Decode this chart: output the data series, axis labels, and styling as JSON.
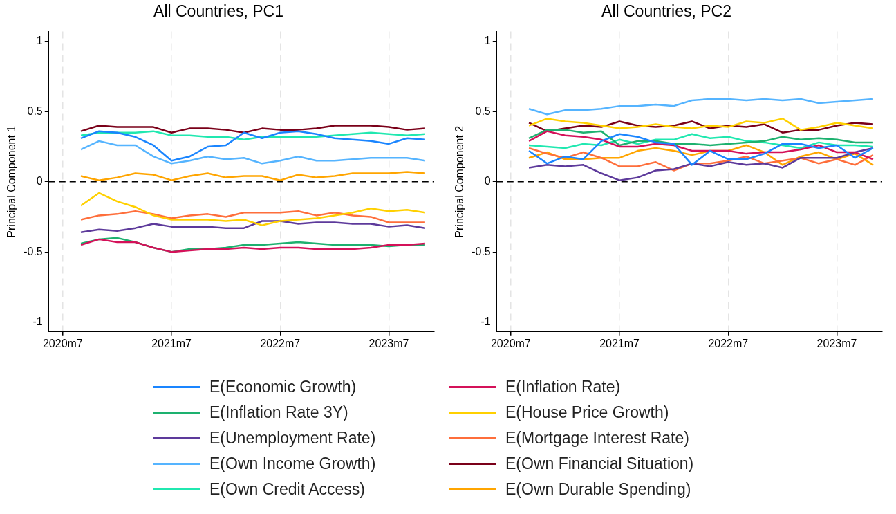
{
  "chart_data": [
    {
      "type": "line",
      "title": "All Countries, PC1",
      "ylabel": "Principal Component 1",
      "x": [
        "2020-09",
        "2020-11",
        "2021-01",
        "2021-03",
        "2021-05",
        "2021-07",
        "2021-09",
        "2021-11",
        "2022-01",
        "2022-03",
        "2022-05",
        "2022-07",
        "2022-09",
        "2022-11",
        "2023-01",
        "2023-03",
        "2023-05",
        "2023-07",
        "2023-09",
        "2023-11"
      ],
      "xlim": [
        "2020-05-15",
        "2023-12"
      ],
      "xticks": [
        {
          "value": "2020-07",
          "label": "2020m7"
        },
        {
          "value": "2021-07",
          "label": "2021m7"
        },
        {
          "value": "2022-07",
          "label": "2022m7"
        },
        {
          "value": "2023-07",
          "label": "2023m7"
        }
      ],
      "ylim": [
        -1.07,
        1.07
      ],
      "yticks": [
        -1,
        -0.5,
        0,
        0.5,
        1
      ],
      "grid": "x",
      "legend": "bottom",
      "ref_lines": [
        {
          "axis": "y",
          "value": 0,
          "color": "#000000",
          "line_style": "dashed"
        }
      ],
      "series": [
        {
          "name": "E(Economic Growth)",
          "color": "#1a85ff",
          "values": [
            0.31,
            0.36,
            0.35,
            0.32,
            0.26,
            0.15,
            0.18,
            0.25,
            0.26,
            0.35,
            0.31,
            0.35,
            0.36,
            0.34,
            0.31,
            0.3,
            0.29,
            0.27,
            0.31,
            0.3
          ]
        },
        {
          "name": "E(Inflation Rate)",
          "color": "#d41159",
          "values": [
            -0.45,
            -0.41,
            -0.43,
            -0.43,
            -0.47,
            -0.5,
            -0.49,
            -0.48,
            -0.48,
            -0.47,
            -0.48,
            -0.47,
            -0.47,
            -0.48,
            -0.48,
            -0.48,
            -0.47,
            -0.45,
            -0.45,
            -0.44
          ]
        },
        {
          "name": "E(Inflation Rate 3Y)",
          "color": "#1db16f",
          "values": [
            -0.44,
            -0.41,
            -0.4,
            -0.43,
            -0.47,
            -0.5,
            -0.48,
            -0.48,
            -0.47,
            -0.45,
            -0.45,
            -0.44,
            -0.43,
            -0.44,
            -0.45,
            -0.45,
            -0.45,
            -0.46,
            -0.45,
            -0.45
          ]
        },
        {
          "name": "E(House Price Growth)",
          "color": "#ffd000",
          "values": [
            -0.17,
            -0.08,
            -0.14,
            -0.18,
            -0.24,
            -0.27,
            -0.27,
            -0.27,
            -0.28,
            -0.27,
            -0.31,
            -0.28,
            -0.27,
            -0.26,
            -0.24,
            -0.22,
            -0.19,
            -0.21,
            -0.2,
            -0.22
          ]
        },
        {
          "name": "E(Unemployment Rate)",
          "color": "#5d3a9b",
          "values": [
            -0.36,
            -0.34,
            -0.35,
            -0.33,
            -0.3,
            -0.32,
            -0.32,
            -0.32,
            -0.33,
            -0.33,
            -0.28,
            -0.28,
            -0.3,
            -0.29,
            -0.29,
            -0.3,
            -0.3,
            -0.32,
            -0.31,
            -0.33
          ]
        },
        {
          "name": "E(Mortgage Interest Rate)",
          "color": "#fe6e3b",
          "values": [
            -0.27,
            -0.24,
            -0.23,
            -0.21,
            -0.23,
            -0.26,
            -0.24,
            -0.23,
            -0.25,
            -0.22,
            -0.22,
            -0.22,
            -0.21,
            -0.24,
            -0.22,
            -0.24,
            -0.25,
            -0.29,
            -0.29,
            -0.29
          ]
        },
        {
          "name": "E(Own Income Growth)",
          "color": "#55b4ff",
          "values": [
            0.23,
            0.29,
            0.26,
            0.26,
            0.18,
            0.13,
            0.15,
            0.18,
            0.16,
            0.17,
            0.13,
            0.15,
            0.18,
            0.15,
            0.15,
            0.16,
            0.17,
            0.17,
            0.17,
            0.15
          ]
        },
        {
          "name": "E(Own Financial Situation)",
          "color": "#7a0019",
          "values": [
            0.36,
            0.4,
            0.39,
            0.39,
            0.39,
            0.35,
            0.38,
            0.38,
            0.37,
            0.35,
            0.38,
            0.37,
            0.37,
            0.38,
            0.4,
            0.4,
            0.4,
            0.39,
            0.37,
            0.38
          ]
        },
        {
          "name": "E(Own Credit Access)",
          "color": "#20e8b0",
          "values": [
            0.33,
            0.35,
            0.35,
            0.35,
            0.36,
            0.33,
            0.33,
            0.32,
            0.32,
            0.3,
            0.32,
            0.32,
            0.32,
            0.32,
            0.33,
            0.34,
            0.35,
            0.34,
            0.33,
            0.34
          ]
        },
        {
          "name": "E(Own Durable Spending)",
          "color": "#ffa500",
          "values": [
            0.04,
            0.01,
            0.03,
            0.06,
            0.05,
            0.01,
            0.04,
            0.06,
            0.03,
            0.04,
            0.04,
            0.01,
            0.05,
            0.03,
            0.04,
            0.06,
            0.06,
            0.06,
            0.07,
            0.06
          ]
        }
      ]
    },
    {
      "type": "line",
      "title": "All Countries, PC2",
      "ylabel": "Principal Component 2",
      "x": [
        "2020-09",
        "2020-11",
        "2021-01",
        "2021-03",
        "2021-05",
        "2021-07",
        "2021-09",
        "2021-11",
        "2022-01",
        "2022-03",
        "2022-05",
        "2022-07",
        "2022-09",
        "2022-11",
        "2023-01",
        "2023-03",
        "2023-05",
        "2023-07",
        "2023-09",
        "2023-11"
      ],
      "xlim": [
        "2020-05-15",
        "2023-12"
      ],
      "xticks": [
        {
          "value": "2020-07",
          "label": "2020m7"
        },
        {
          "value": "2021-07",
          "label": "2021m7"
        },
        {
          "value": "2022-07",
          "label": "2022m7"
        },
        {
          "value": "2023-07",
          "label": "2023m7"
        }
      ],
      "ylim": [
        -1.07,
        1.07
      ],
      "yticks": [
        -1,
        -0.5,
        0,
        0.5,
        1
      ],
      "grid": "x",
      "ref_lines": [
        {
          "axis": "y",
          "value": 0,
          "color": "#000000",
          "line_style": "dashed"
        }
      ],
      "series": [
        {
          "color": "#1a85ff",
          "values": [
            0.22,
            0.13,
            0.18,
            0.16,
            0.29,
            0.34,
            0.32,
            0.28,
            0.27,
            0.12,
            0.22,
            0.16,
            0.16,
            0.2,
            0.27,
            0.27,
            0.24,
            0.26,
            0.17,
            0.24
          ]
        },
        {
          "color": "#d41159",
          "values": [
            0.29,
            0.36,
            0.33,
            0.32,
            0.3,
            0.25,
            0.25,
            0.27,
            0.26,
            0.22,
            0.22,
            0.22,
            0.2,
            0.21,
            0.21,
            0.23,
            0.26,
            0.21,
            0.21,
            0.16
          ]
        },
        {
          "color": "#1db16f",
          "values": [
            0.31,
            0.37,
            0.37,
            0.35,
            0.36,
            0.26,
            0.29,
            0.29,
            0.27,
            0.27,
            0.26,
            0.27,
            0.28,
            0.29,
            0.32,
            0.3,
            0.31,
            0.3,
            0.28,
            0.28
          ]
        },
        {
          "color": "#ffd000",
          "values": [
            0.4,
            0.45,
            0.43,
            0.42,
            0.4,
            0.38,
            0.39,
            0.41,
            0.39,
            0.38,
            0.4,
            0.39,
            0.43,
            0.42,
            0.45,
            0.37,
            0.39,
            0.42,
            0.4,
            0.38
          ]
        },
        {
          "color": "#5d3a9b",
          "values": [
            0.1,
            0.12,
            0.11,
            0.12,
            0.06,
            0.01,
            0.03,
            0.08,
            0.09,
            0.13,
            0.11,
            0.14,
            0.12,
            0.13,
            0.1,
            0.17,
            0.17,
            0.17,
            0.21,
            0.24
          ]
        },
        {
          "color": "#fe6e3b",
          "values": [
            0.24,
            0.2,
            0.17,
            0.21,
            0.17,
            0.11,
            0.11,
            0.14,
            0.08,
            0.13,
            0.13,
            0.15,
            0.18,
            0.13,
            0.15,
            0.17,
            0.13,
            0.16,
            0.12,
            0.19
          ]
        },
        {
          "color": "#55b4ff",
          "values": [
            0.52,
            0.48,
            0.51,
            0.51,
            0.52,
            0.54,
            0.54,
            0.55,
            0.54,
            0.58,
            0.59,
            0.59,
            0.58,
            0.59,
            0.58,
            0.59,
            0.56,
            0.57,
            0.58,
            0.59
          ]
        },
        {
          "color": "#7a0019",
          "values": [
            0.42,
            0.36,
            0.38,
            0.4,
            0.39,
            0.43,
            0.4,
            0.39,
            0.4,
            0.43,
            0.38,
            0.4,
            0.39,
            0.41,
            0.35,
            0.37,
            0.37,
            0.4,
            0.42,
            0.41
          ]
        },
        {
          "color": "#20e8b0",
          "values": [
            0.26,
            0.25,
            0.24,
            0.27,
            0.26,
            0.3,
            0.27,
            0.3,
            0.3,
            0.34,
            0.31,
            0.32,
            0.29,
            0.28,
            0.26,
            0.24,
            0.28,
            0.26,
            0.26,
            0.25
          ]
        },
        {
          "color": "#ffa500",
          "values": [
            0.17,
            0.21,
            0.16,
            0.16,
            0.17,
            0.17,
            0.22,
            0.24,
            0.22,
            0.19,
            0.22,
            0.22,
            0.26,
            0.21,
            0.12,
            0.18,
            0.21,
            0.16,
            0.2,
            0.12
          ]
        }
      ]
    }
  ]
}
